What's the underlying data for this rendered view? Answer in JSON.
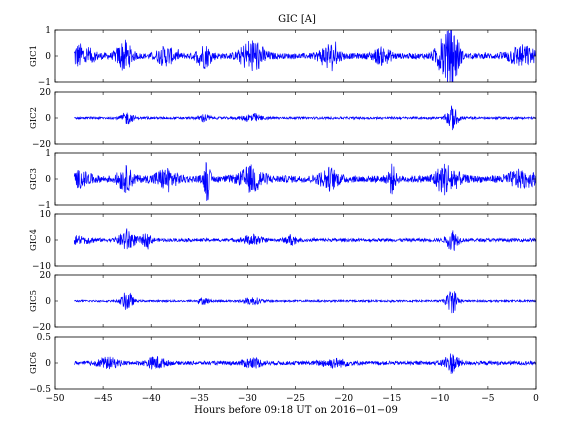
{
  "chart_data": {
    "type": "line",
    "title": "GIC [A]",
    "xlabel": "Hours before  09:18 UT on 2016−01−09",
    "xlim": [
      -50,
      0
    ],
    "data_x_start": -48,
    "x_ticks": [
      "−50",
      "−45",
      "−40",
      "−35",
      "−30",
      "−25",
      "−20",
      "−15",
      "−10",
      "−5",
      "0"
    ],
    "line_color": "#0000ff",
    "grid": false,
    "panels": [
      {
        "ylabel": "GIC1",
        "ylim": [
          -1,
          1
        ],
        "y_ticks": [
          "1",
          "0",
          "−1"
        ],
        "noise_amplitude": 0.12,
        "bursts": [
          {
            "x": -47.5,
            "width": 1.5,
            "amp": 0.45
          },
          {
            "x": -42.8,
            "width": 0.8,
            "amp": 0.6
          },
          {
            "x": -38.5,
            "width": 1.0,
            "amp": 0.35
          },
          {
            "x": -34.5,
            "width": 0.8,
            "amp": 0.45
          },
          {
            "x": -29.5,
            "width": 1.2,
            "amp": 0.7
          },
          {
            "x": -21.5,
            "width": 1.0,
            "amp": 0.5
          },
          {
            "x": -16.0,
            "width": 1.0,
            "amp": 0.3
          },
          {
            "x": -9.5,
            "width": 0.9,
            "amp": 0.85
          },
          {
            "x": -8.5,
            "width": 0.6,
            "amp": 0.9
          },
          {
            "x": -1.5,
            "width": 1.5,
            "amp": 0.4
          }
        ]
      },
      {
        "ylabel": "GIC2",
        "ylim": [
          -20,
          20
        ],
        "y_ticks": [
          "20",
          "0",
          "−20"
        ],
        "noise_amplitude": 1.0,
        "bursts": [
          {
            "x": -42.5,
            "width": 0.6,
            "amp": 5.0
          },
          {
            "x": -34.5,
            "width": 0.6,
            "amp": 3.0
          },
          {
            "x": -29.5,
            "width": 1.0,
            "amp": 3.5
          },
          {
            "x": -8.7,
            "width": 0.6,
            "amp": 10.0
          }
        ]
      },
      {
        "ylabel": "GIC3",
        "ylim": [
          -1,
          1
        ],
        "y_ticks": [
          "1",
          "0",
          "−1"
        ],
        "noise_amplitude": 0.15,
        "bursts": [
          {
            "x": -47.5,
            "width": 1.2,
            "amp": 0.25
          },
          {
            "x": -42.7,
            "width": 0.8,
            "amp": 0.45
          },
          {
            "x": -38.5,
            "width": 1.2,
            "amp": 0.35
          },
          {
            "x": -34.2,
            "width": 0.3,
            "amp": 0.85
          },
          {
            "x": -29.5,
            "width": 1.2,
            "amp": 0.5
          },
          {
            "x": -21.5,
            "width": 1.0,
            "amp": 0.4
          },
          {
            "x": -15.0,
            "width": 0.4,
            "amp": 0.55
          },
          {
            "x": -9.3,
            "width": 1.2,
            "amp": 0.6
          },
          {
            "x": -1.5,
            "width": 1.5,
            "amp": 0.3
          }
        ]
      },
      {
        "ylabel": "GIC4",
        "ylim": [
          -10,
          10
        ],
        "y_ticks": [
          "10",
          "0",
          "−10"
        ],
        "noise_amplitude": 0.7,
        "bursts": [
          {
            "x": -47.5,
            "width": 1.5,
            "amp": 1.5
          },
          {
            "x": -42.5,
            "width": 0.8,
            "amp": 4.5
          },
          {
            "x": -40.5,
            "width": 0.6,
            "amp": 2.5
          },
          {
            "x": -29.5,
            "width": 1.0,
            "amp": 2.0
          },
          {
            "x": -25.5,
            "width": 0.6,
            "amp": 2.0
          },
          {
            "x": -8.7,
            "width": 0.6,
            "amp": 4.5
          }
        ]
      },
      {
        "ylabel": "GIC5",
        "ylim": [
          -20,
          20
        ],
        "y_ticks": [
          "20",
          "0",
          "−20"
        ],
        "noise_amplitude": 0.8,
        "bursts": [
          {
            "x": -42.5,
            "width": 0.6,
            "amp": 8.0
          },
          {
            "x": -34.5,
            "width": 0.6,
            "amp": 2.5
          },
          {
            "x": -29.5,
            "width": 1.0,
            "amp": 3.0
          },
          {
            "x": -8.7,
            "width": 0.6,
            "amp": 10.0
          }
        ]
      },
      {
        "ylabel": "GIC6",
        "ylim": [
          -0.5,
          0.5
        ],
        "y_ticks": [
          "0.5",
          "0",
          "−0.5"
        ],
        "noise_amplitude": 0.04,
        "bursts": [
          {
            "x": -44.5,
            "width": 1.2,
            "amp": 0.1
          },
          {
            "x": -39.5,
            "width": 1.0,
            "amp": 0.12
          },
          {
            "x": -29.5,
            "width": 1.0,
            "amp": 0.1
          },
          {
            "x": -21.0,
            "width": 1.5,
            "amp": 0.08
          },
          {
            "x": -8.8,
            "width": 0.8,
            "amp": 0.2
          }
        ]
      }
    ]
  }
}
